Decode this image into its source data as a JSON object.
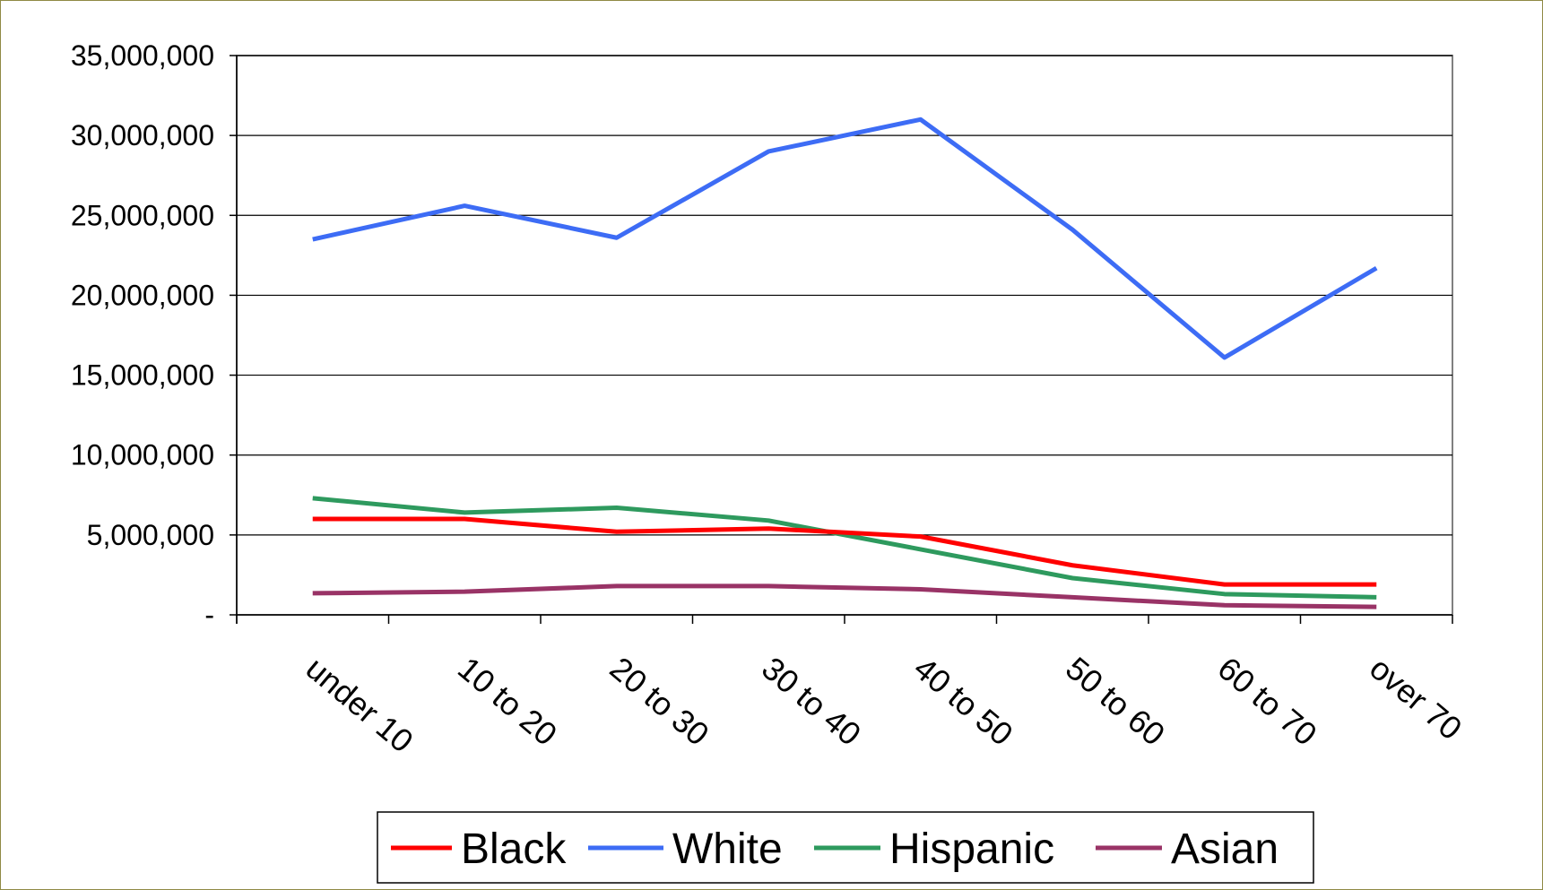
{
  "chart_data": {
    "type": "line",
    "categories": [
      "under 10",
      "10 to 20",
      "20 to 30",
      "30 to 40",
      "40 to 50",
      "50 to 60",
      "60 to 70",
      "over 70"
    ],
    "series": [
      {
        "name": "Black",
        "color": "#ff0000",
        "values": [
          6000000,
          6000000,
          5200000,
          5400000,
          4900000,
          3100000,
          1900000,
          1900000
        ]
      },
      {
        "name": "White",
        "color": "#3d6cf5",
        "values": [
          23500000,
          25600000,
          23600000,
          29000000,
          31000000,
          24100000,
          16100000,
          21700000
        ]
      },
      {
        "name": "Hispanic",
        "color": "#2e9a5e",
        "values": [
          7300000,
          6400000,
          6700000,
          5900000,
          4100000,
          2300000,
          1300000,
          1100000
        ]
      },
      {
        "name": "Asian",
        "color": "#993366",
        "values": [
          1350000,
          1450000,
          1800000,
          1800000,
          1600000,
          1100000,
          600000,
          500000
        ]
      }
    ],
    "y_ticks": [
      {
        "value": 0,
        "label": "-"
      },
      {
        "value": 5000000,
        "label": "5,000,000"
      },
      {
        "value": 10000000,
        "label": "10,000,000"
      },
      {
        "value": 15000000,
        "label": "15,000,000"
      },
      {
        "value": 20000000,
        "label": "20,000,000"
      },
      {
        "value": 25000000,
        "label": "25,000,000"
      },
      {
        "value": 30000000,
        "label": "30,000,000"
      },
      {
        "value": 35000000,
        "label": "35,000,000"
      }
    ],
    "ylim": [
      0,
      35000000
    ],
    "grid": true,
    "legend_position": "bottom",
    "title": "",
    "xlabel": "",
    "ylabel": ""
  }
}
